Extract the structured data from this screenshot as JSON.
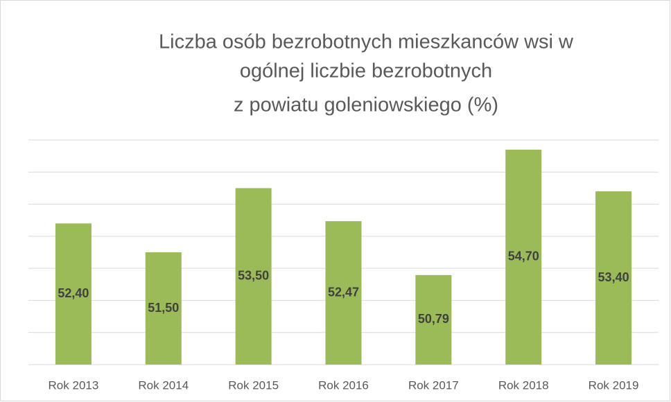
{
  "chart_data": {
    "type": "bar",
    "title": [
      "Liczba osób bezrobotnych mieszkanców wsi w",
      "ogólnej liczbie bezrobotnych",
      "z powiatu goleniowskiego (%)"
    ],
    "categories": [
      "Rok 2013",
      "Rok 2014",
      "Rok 2015",
      "Rok 2016",
      "Rok 2017",
      "Rok 2018",
      "Rok 2019"
    ],
    "values": [
      52.4,
      51.5,
      53.5,
      52.47,
      50.79,
      54.7,
      53.4
    ],
    "value_labels": [
      "52,40",
      "51,50",
      "53,50",
      "52,47",
      "50,79",
      "54,70",
      "53,40"
    ],
    "color": "#9bbb59",
    "ylim": [
      48,
      55
    ],
    "yticks": [
      48,
      49,
      50,
      51,
      52,
      53,
      54,
      55
    ],
    "grid": true
  }
}
